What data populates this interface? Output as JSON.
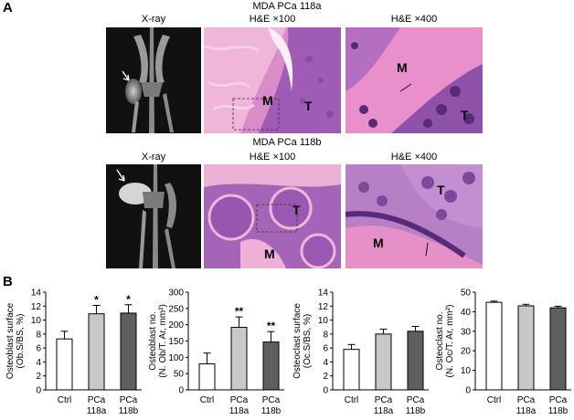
{
  "panel_a": {
    "letter": "A",
    "row1": {
      "title": "MDA PCa 118a",
      "xray_label": "X-ray",
      "he100_label": "H&E ×100",
      "he400_label": "H&E ×400",
      "labels": {
        "m": "M",
        "t": "T"
      }
    },
    "row2": {
      "title": "MDA PCa 118b",
      "xray_label": "X-ray",
      "he100_label": "H&E ×100",
      "he400_label": "H&E ×400",
      "labels": {
        "m": "M",
        "t": "T"
      }
    }
  },
  "panel_b": {
    "letter": "B"
  },
  "colors": {
    "he_pink": "#e9a3cf",
    "he_purple": "#7a3a9e",
    "bar_ctrl": "#ffffff",
    "bar_118a": "#c8c8c8",
    "bar_118b": "#5f5f5f"
  },
  "chart_data": [
    {
      "type": "bar",
      "ylabel_line1": "Osteoblast surface",
      "ylabel_line2": "(Ob.S/BS, %)",
      "ylim": [
        0,
        14
      ],
      "yticks": [
        0,
        2,
        4,
        6,
        8,
        10,
        12,
        14
      ],
      "categories": [
        [
          "Ctrl",
          ""
        ],
        [
          "PCa",
          "118a"
        ],
        [
          "PCa",
          "118b"
        ]
      ],
      "values": [
        7.3,
        10.9,
        11.0
      ],
      "errors": [
        1.1,
        1.2,
        1.2
      ],
      "significance": [
        "",
        "*",
        "*"
      ]
    },
    {
      "type": "bar",
      "ylabel_line1": "Osteoblast no.",
      "ylabel_line2": "(N. Ob/T. Ar, mm²)",
      "ylim": [
        0,
        300
      ],
      "yticks": [
        0,
        50,
        100,
        150,
        200,
        250,
        300
      ],
      "categories": [
        [
          "Ctrl",
          ""
        ],
        [
          "PCa",
          "118a"
        ],
        [
          "PCa",
          "118b"
        ]
      ],
      "values": [
        80,
        192,
        147
      ],
      "errors": [
        33,
        32,
        32
      ],
      "significance": [
        "",
        "**",
        "**"
      ]
    },
    {
      "type": "bar",
      "ylabel_line1": "Osteoclast surface",
      "ylabel_line2": "(Oc.S/BS, %)",
      "ylim": [
        0,
        14
      ],
      "yticks": [
        0,
        2,
        4,
        6,
        8,
        10,
        12,
        14
      ],
      "categories": [
        [
          "Ctrl",
          ""
        ],
        [
          "PCa",
          "118a"
        ],
        [
          "PCa",
          "118b"
        ]
      ],
      "values": [
        5.8,
        8.0,
        8.4
      ],
      "errors": [
        0.7,
        0.7,
        0.7
      ],
      "significance": [
        "",
        "",
        ""
      ]
    },
    {
      "type": "bar",
      "ylabel_line1": "Osteoclast no.",
      "ylabel_line2": "(N. Oc/T. Ar, mm²)",
      "ylim": [
        0,
        50
      ],
      "yticks": [
        0,
        10,
        20,
        30,
        40,
        50
      ],
      "categories": [
        [
          "Ctrl",
          ""
        ],
        [
          "PCa",
          "118a"
        ],
        [
          "PCa",
          "118b"
        ]
      ],
      "values": [
        44.8,
        43.0,
        42.0
      ],
      "errors": [
        0.6,
        0.8,
        0.8
      ],
      "significance": [
        "",
        "",
        ""
      ]
    }
  ]
}
